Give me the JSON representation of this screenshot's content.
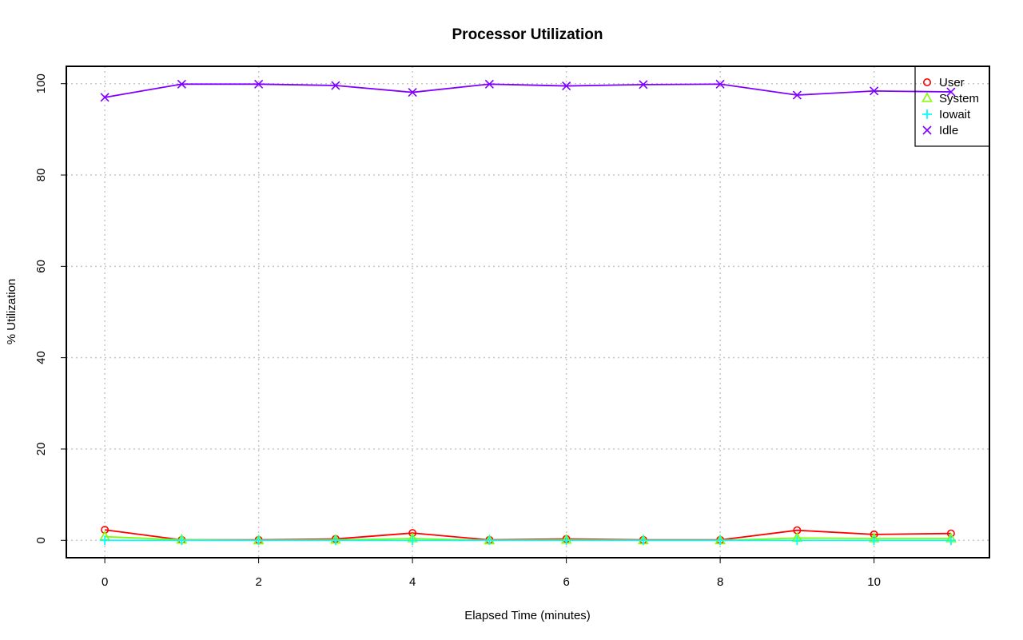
{
  "chart_data": {
    "type": "line",
    "title": "Processor Utilization",
    "xlabel": "Elapsed Time (minutes)",
    "ylabel": "% Utilization",
    "x": [
      0,
      1,
      2,
      3,
      4,
      5,
      6,
      7,
      8,
      9,
      10,
      11
    ],
    "xlim": [
      -0.5,
      11.5
    ],
    "ylim": [
      -3.8,
      103.8
    ],
    "x_ticks": [
      0,
      2,
      4,
      6,
      8,
      10
    ],
    "y_ticks": [
      0,
      20,
      40,
      60,
      80,
      100
    ],
    "grid": true,
    "legend_position": "top-right",
    "series": [
      {
        "name": "User",
        "color": "#ff0000",
        "marker": "circle",
        "values": [
          2.3,
          0.1,
          0.1,
          0.3,
          1.6,
          0.1,
          0.3,
          0.1,
          0.1,
          2.2,
          1.3,
          1.5
        ]
      },
      {
        "name": "System",
        "color": "#80ff00",
        "marker": "triangle",
        "values": [
          0.8,
          0.1,
          0.0,
          0.1,
          0.4,
          0.0,
          0.1,
          0.0,
          0.0,
          0.5,
          0.4,
          0.4
        ]
      },
      {
        "name": "Iowait",
        "color": "#00ffff",
        "marker": "plus",
        "values": [
          0.0,
          0.0,
          0.0,
          0.0,
          0.0,
          0.0,
          0.0,
          0.0,
          0.0,
          0.0,
          0.0,
          0.0
        ]
      },
      {
        "name": "Idle",
        "color": "#8000ff",
        "marker": "cross",
        "values": [
          97.0,
          99.9,
          99.9,
          99.6,
          98.1,
          99.9,
          99.5,
          99.8,
          99.9,
          97.5,
          98.4,
          98.2
        ]
      }
    ]
  }
}
